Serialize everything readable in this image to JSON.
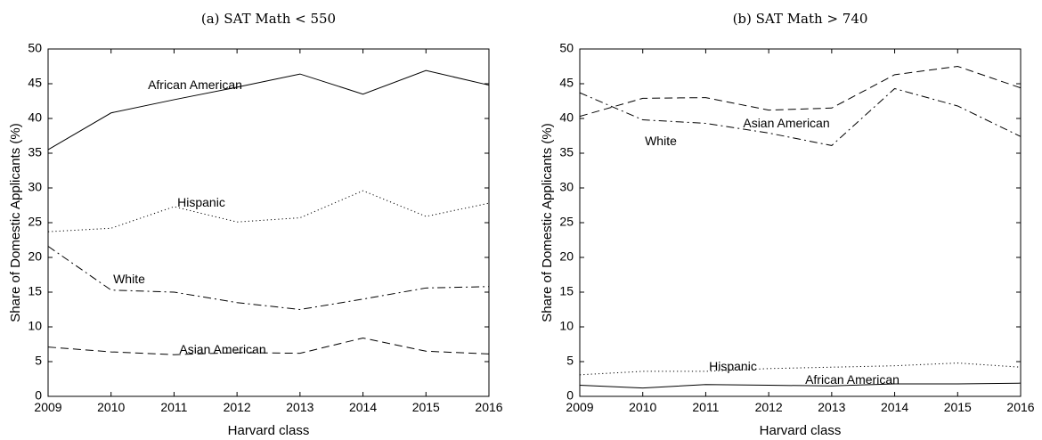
{
  "chart_data": [
    {
      "type": "line",
      "title": "(a) SAT Math < 550",
      "xlabel": "Harvard class",
      "ylabel": "Share of Domestic Applicants (%)",
      "xlim": [
        2009,
        2016
      ],
      "ylim": [
        0,
        50
      ],
      "x_ticks": [
        "2009",
        "2010",
        "2011",
        "2012",
        "2013",
        "2014",
        "2015",
        "2016"
      ],
      "y_ticks": [
        "0",
        "5",
        "10",
        "15",
        "20",
        "25",
        "30",
        "35",
        "40",
        "45",
        "50"
      ],
      "grid": false,
      "legend": "inline labels",
      "x": [
        2009,
        2010,
        2011,
        2012,
        2013,
        2014,
        2015,
        2016
      ],
      "series": [
        {
          "name": "African American",
          "style": "solid",
          "values": [
            35.5,
            40.8,
            42.7,
            44.5,
            46.4,
            43.5,
            46.9,
            44.8
          ]
        },
        {
          "name": "Hispanic",
          "style": "dotted",
          "values": [
            23.7,
            24.2,
            27.3,
            25.1,
            25.7,
            29.6,
            25.9,
            27.8
          ]
        },
        {
          "name": "White",
          "style": "dashdot",
          "values": [
            21.6,
            15.3,
            15.0,
            13.5,
            12.5,
            14.0,
            15.6,
            15.8
          ]
        },
        {
          "name": "Asian American",
          "style": "dashed",
          "values": [
            7.1,
            6.4,
            6.0,
            6.3,
            6.2,
            8.4,
            6.5,
            6.1
          ]
        }
      ]
    },
    {
      "type": "line",
      "title": "(b) SAT Math > 740",
      "xlabel": "Harvard class",
      "ylabel": "Share of Domestic Applicants (%)",
      "xlim": [
        2009,
        2016
      ],
      "ylim": [
        0,
        50
      ],
      "x_ticks": [
        "2009",
        "2010",
        "2011",
        "2012",
        "2013",
        "2014",
        "2015",
        "2016"
      ],
      "y_ticks": [
        "0",
        "5",
        "10",
        "15",
        "20",
        "25",
        "30",
        "35",
        "40",
        "45",
        "50"
      ],
      "grid": false,
      "legend": "inline labels",
      "x": [
        2009,
        2010,
        2011,
        2012,
        2013,
        2014,
        2015,
        2016
      ],
      "series": [
        {
          "name": "Asian American",
          "style": "dashed",
          "values": [
            40.3,
            42.9,
            43.0,
            41.2,
            41.5,
            46.3,
            47.5,
            44.4
          ]
        },
        {
          "name": "White",
          "style": "dashdot",
          "values": [
            43.7,
            39.8,
            39.3,
            37.9,
            36.1,
            44.3,
            41.8,
            37.4
          ]
        },
        {
          "name": "Hispanic",
          "style": "dotted",
          "values": [
            3.1,
            3.6,
            3.6,
            4.0,
            4.2,
            4.4,
            4.8,
            4.2
          ]
        },
        {
          "name": "African American",
          "style": "solid",
          "values": [
            1.6,
            1.2,
            1.7,
            1.6,
            1.5,
            1.8,
            1.8,
            1.9
          ]
        }
      ]
    }
  ]
}
